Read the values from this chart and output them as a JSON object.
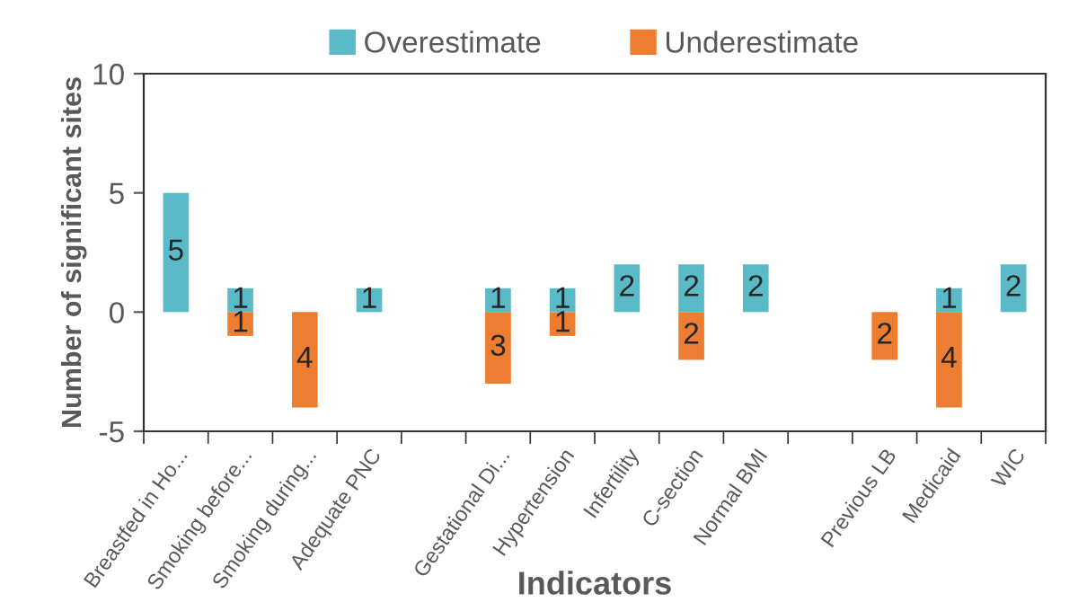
{
  "chart_data": {
    "type": "bar",
    "xlabel": "Indicators",
    "ylabel": "Number of significant sites",
    "categories": [
      "Breastfed in Ho...",
      "Smoking before...",
      "Smoking during...",
      "Adequate PNC",
      null,
      "Gestational Di...",
      "Hypertension",
      "Infertility",
      "C-section",
      "Normal BMI",
      null,
      "Previous LB",
      "Medicaid",
      "WIC"
    ],
    "series": [
      {
        "name": "Overestimate",
        "color": "#5bbac8",
        "values": [
          5,
          1,
          null,
          1,
          null,
          1,
          1,
          2,
          2,
          2,
          null,
          null,
          1,
          2
        ],
        "value_labels": [
          "5",
          "1",
          null,
          "1",
          null,
          "1",
          "1",
          "2",
          "2",
          "2",
          null,
          null,
          "1",
          "2"
        ]
      },
      {
        "name": "Underestimate",
        "color": "#ed7d31",
        "values": [
          null,
          1,
          4,
          null,
          null,
          3,
          1,
          null,
          2,
          null,
          null,
          2,
          4,
          null
        ],
        "base": [
          null,
          -1,
          -4,
          null,
          null,
          -3,
          -1,
          null,
          -2,
          null,
          null,
          -2,
          -4,
          null
        ],
        "value_labels": [
          null,
          "1",
          "4",
          null,
          null,
          "3",
          "1",
          null,
          "2",
          null,
          null,
          "2",
          "4",
          null
        ]
      }
    ],
    "grid": false,
    "ylim": [
      -5,
      10
    ],
    "yticks": [
      -5,
      0,
      5,
      10
    ],
    "legend": "top"
  }
}
